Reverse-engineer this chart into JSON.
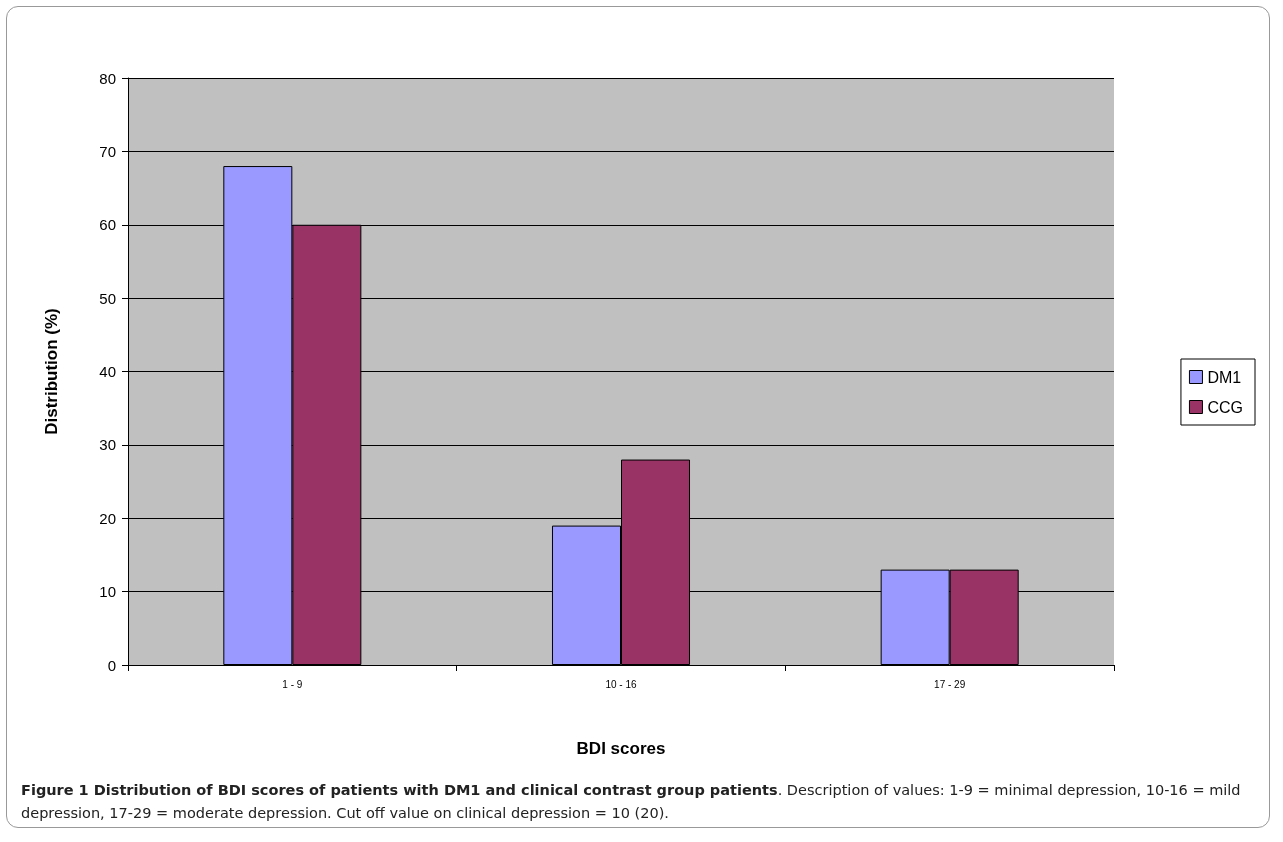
{
  "chart_data": {
    "type": "bar",
    "xlabel": "BDI scores",
    "ylabel": "Distribution (%)",
    "categories": [
      "1 - 9",
      "10 - 16",
      "17 - 29"
    ],
    "series": [
      {
        "name": "DM1",
        "color": "#9999ff",
        "values": [
          68,
          19,
          13
        ]
      },
      {
        "name": "CCG",
        "color": "#993366",
        "values": [
          60,
          28,
          13
        ]
      }
    ],
    "ylim": [
      0,
      80
    ],
    "yticks": [
      0,
      10,
      20,
      30,
      40,
      50,
      60,
      70,
      80
    ],
    "grid": "y",
    "legend": "right",
    "annotations": [
      "Figure 1 Distribution of BDI scores of patients with DM1 and clinical contrast group patients",
      ". Description of values: 1-9 = minimal depression, 10-16 = mild depression, 17-29 = moderate depression. Cut off value on clinical depression = 10 (20)."
    ]
  }
}
